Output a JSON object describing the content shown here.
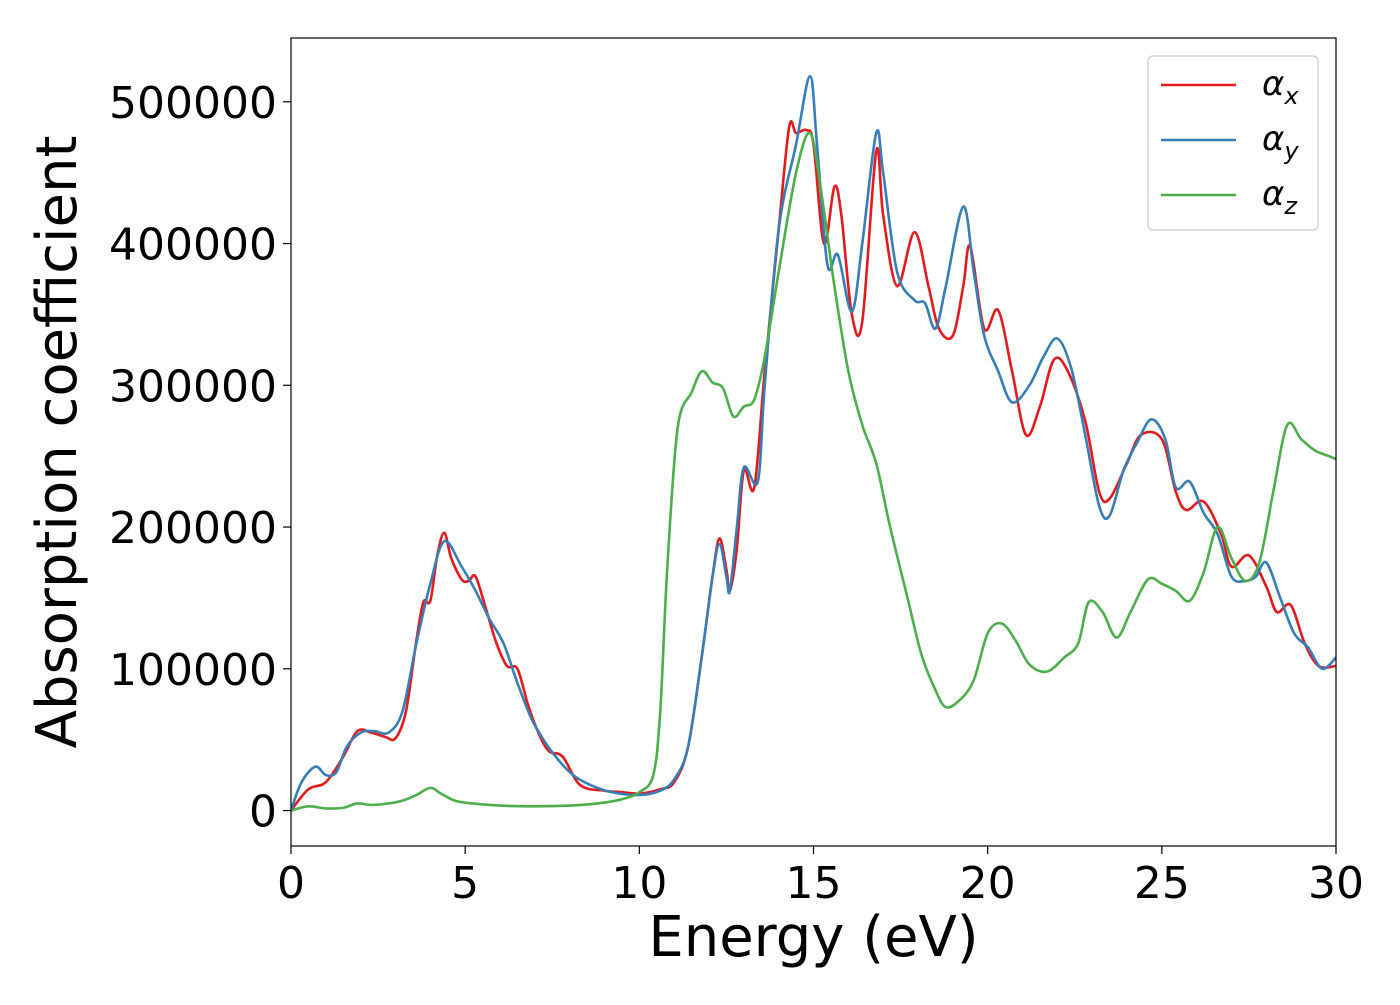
{
  "chart_data": {
    "type": "line",
    "xlabel": "Energy (eV)",
    "ylabel": "Absorption coefficient",
    "xlim": [
      0,
      30
    ],
    "ylim": [
      -25000,
      545000
    ],
    "xticks": [
      "0",
      "5",
      "10",
      "15",
      "20",
      "25",
      "30"
    ],
    "yticks": [
      "0",
      "100000",
      "200000",
      "300000",
      "400000",
      "500000"
    ],
    "grid": false,
    "legend_position": "top-right",
    "series": [
      {
        "name": "αx",
        "legend_base": "α",
        "legend_sub": "x",
        "color": "#e41a1c",
        "points": [
          [
            0,
            0
          ],
          [
            0.5,
            15000
          ],
          [
            1.0,
            20000
          ],
          [
            1.5,
            38000
          ],
          [
            1.9,
            56000
          ],
          [
            2.3,
            55000
          ],
          [
            2.7,
            52000
          ],
          [
            3.0,
            51000
          ],
          [
            3.3,
            70000
          ],
          [
            3.6,
            120000
          ],
          [
            3.8,
            147000
          ],
          [
            4.0,
            148000
          ],
          [
            4.2,
            180000
          ],
          [
            4.4,
            196000
          ],
          [
            4.6,
            178000
          ],
          [
            4.9,
            163000
          ],
          [
            5.1,
            162000
          ],
          [
            5.3,
            165000
          ],
          [
            5.6,
            142000
          ],
          [
            5.9,
            118000
          ],
          [
            6.2,
            102000
          ],
          [
            6.5,
            100000
          ],
          [
            6.8,
            75000
          ],
          [
            7.1,
            55000
          ],
          [
            7.4,
            42000
          ],
          [
            7.8,
            38000
          ],
          [
            8.3,
            18000
          ],
          [
            9.0,
            14000
          ],
          [
            9.5,
            13000
          ],
          [
            10.0,
            12000
          ],
          [
            10.6,
            15000
          ],
          [
            11.0,
            20000
          ],
          [
            11.4,
            45000
          ],
          [
            11.8,
            110000
          ],
          [
            12.1,
            165000
          ],
          [
            12.3,
            192000
          ],
          [
            12.5,
            170000
          ],
          [
            12.6,
            155000
          ],
          [
            12.8,
            185000
          ],
          [
            13.0,
            240000
          ],
          [
            13.3,
            228000
          ],
          [
            13.6,
            310000
          ],
          [
            14.0,
            410000
          ],
          [
            14.3,
            482000
          ],
          [
            14.5,
            478000
          ],
          [
            14.8,
            480000
          ],
          [
            15.0,
            470000
          ],
          [
            15.3,
            400000
          ],
          [
            15.6,
            440000
          ],
          [
            15.8,
            420000
          ],
          [
            16.1,
            350000
          ],
          [
            16.4,
            345000
          ],
          [
            16.8,
            465000
          ],
          [
            17.0,
            420000
          ],
          [
            17.4,
            370000
          ],
          [
            17.9,
            408000
          ],
          [
            18.3,
            370000
          ],
          [
            18.6,
            340000
          ],
          [
            19.0,
            335000
          ],
          [
            19.3,
            370000
          ],
          [
            19.5,
            398000
          ],
          [
            19.9,
            340000
          ],
          [
            20.3,
            353000
          ],
          [
            20.7,
            310000
          ],
          [
            21.1,
            265000
          ],
          [
            21.5,
            285000
          ],
          [
            21.9,
            318000
          ],
          [
            22.3,
            310000
          ],
          [
            22.8,
            275000
          ],
          [
            23.2,
            225000
          ],
          [
            23.5,
            220000
          ],
          [
            24.0,
            245000
          ],
          [
            24.4,
            265000
          ],
          [
            25.0,
            262000
          ],
          [
            25.4,
            225000
          ],
          [
            25.7,
            212000
          ],
          [
            26.2,
            218000
          ],
          [
            26.7,
            195000
          ],
          [
            27.0,
            172000
          ],
          [
            27.5,
            180000
          ],
          [
            28.0,
            158000
          ],
          [
            28.3,
            140000
          ],
          [
            28.7,
            145000
          ],
          [
            29.1,
            118000
          ],
          [
            29.5,
            102000
          ],
          [
            30.0,
            102000
          ]
        ]
      },
      {
        "name": "αy",
        "legend_base": "α",
        "legend_sub": "y",
        "color": "#377eb8",
        "points": [
          [
            0,
            0
          ],
          [
            0.3,
            20000
          ],
          [
            0.7,
            31000
          ],
          [
            1.0,
            25000
          ],
          [
            1.3,
            27000
          ],
          [
            1.6,
            45000
          ],
          [
            2.0,
            55000
          ],
          [
            2.4,
            56000
          ],
          [
            2.8,
            55000
          ],
          [
            3.2,
            70000
          ],
          [
            3.6,
            118000
          ],
          [
            4.0,
            160000
          ],
          [
            4.4,
            190000
          ],
          [
            4.9,
            172000
          ],
          [
            5.3,
            155000
          ],
          [
            5.7,
            135000
          ],
          [
            6.1,
            118000
          ],
          [
            6.5,
            90000
          ],
          [
            6.9,
            65000
          ],
          [
            7.3,
            48000
          ],
          [
            7.7,
            35000
          ],
          [
            8.1,
            25000
          ],
          [
            8.6,
            18000
          ],
          [
            9.2,
            13000
          ],
          [
            10.0,
            11000
          ],
          [
            10.6,
            14000
          ],
          [
            11.0,
            22000
          ],
          [
            11.4,
            45000
          ],
          [
            11.8,
            110000
          ],
          [
            12.1,
            165000
          ],
          [
            12.3,
            188000
          ],
          [
            12.5,
            165000
          ],
          [
            12.6,
            155000
          ],
          [
            12.8,
            200000
          ],
          [
            13.0,
            242000
          ],
          [
            13.4,
            232000
          ],
          [
            13.6,
            300000
          ],
          [
            14.0,
            410000
          ],
          [
            14.5,
            470000
          ],
          [
            14.9,
            518000
          ],
          [
            15.1,
            470000
          ],
          [
            15.4,
            385000
          ],
          [
            15.7,
            392000
          ],
          [
            16.1,
            352000
          ],
          [
            16.4,
            400000
          ],
          [
            16.8,
            478000
          ],
          [
            17.0,
            450000
          ],
          [
            17.4,
            380000
          ],
          [
            17.9,
            360000
          ],
          [
            18.2,
            358000
          ],
          [
            18.5,
            340000
          ],
          [
            18.8,
            370000
          ],
          [
            19.3,
            426000
          ],
          [
            19.6,
            380000
          ],
          [
            19.9,
            335000
          ],
          [
            20.3,
            310000
          ],
          [
            20.7,
            288000
          ],
          [
            21.2,
            300000
          ],
          [
            21.6,
            320000
          ],
          [
            22.0,
            333000
          ],
          [
            22.4,
            312000
          ],
          [
            22.8,
            265000
          ],
          [
            23.2,
            215000
          ],
          [
            23.5,
            208000
          ],
          [
            23.9,
            240000
          ],
          [
            24.3,
            260000
          ],
          [
            24.7,
            276000
          ],
          [
            25.1,
            262000
          ],
          [
            25.4,
            228000
          ],
          [
            25.8,
            232000
          ],
          [
            26.2,
            210000
          ],
          [
            26.6,
            195000
          ],
          [
            27.0,
            165000
          ],
          [
            27.4,
            162000
          ],
          [
            27.7,
            165000
          ],
          [
            28.0,
            175000
          ],
          [
            28.4,
            150000
          ],
          [
            28.8,
            125000
          ],
          [
            29.2,
            115000
          ],
          [
            29.6,
            100000
          ],
          [
            30.0,
            108000
          ]
        ]
      },
      {
        "name": "αz",
        "legend_base": "α",
        "legend_sub": "z",
        "color": "#4daf4a",
        "points": [
          [
            0,
            0
          ],
          [
            0.5,
            3000
          ],
          [
            1.0,
            1500
          ],
          [
            1.5,
            2000
          ],
          [
            1.9,
            5000
          ],
          [
            2.3,
            4000
          ],
          [
            2.8,
            5000
          ],
          [
            3.2,
            7000
          ],
          [
            3.6,
            11000
          ],
          [
            4.0,
            16000
          ],
          [
            4.3,
            12000
          ],
          [
            4.7,
            7000
          ],
          [
            5.2,
            5000
          ],
          [
            6.0,
            3500
          ],
          [
            7.0,
            3000
          ],
          [
            8.0,
            3500
          ],
          [
            8.8,
            5000
          ],
          [
            9.5,
            8000
          ],
          [
            10.0,
            13000
          ],
          [
            10.4,
            25000
          ],
          [
            10.6,
            70000
          ],
          [
            10.8,
            170000
          ],
          [
            11.1,
            270000
          ],
          [
            11.5,
            295000
          ],
          [
            11.8,
            310000
          ],
          [
            12.1,
            302000
          ],
          [
            12.4,
            298000
          ],
          [
            12.7,
            278000
          ],
          [
            13.0,
            285000
          ],
          [
            13.3,
            290000
          ],
          [
            13.6,
            320000
          ],
          [
            14.0,
            380000
          ],
          [
            14.5,
            450000
          ],
          [
            14.9,
            478000
          ],
          [
            15.2,
            440000
          ],
          [
            15.6,
            370000
          ],
          [
            16.0,
            310000
          ],
          [
            16.4,
            272000
          ],
          [
            16.8,
            245000
          ],
          [
            17.2,
            200000
          ],
          [
            17.7,
            150000
          ],
          [
            18.1,
            110000
          ],
          [
            18.5,
            85000
          ],
          [
            18.8,
            73000
          ],
          [
            19.2,
            78000
          ],
          [
            19.6,
            92000
          ],
          [
            20.0,
            125000
          ],
          [
            20.4,
            132000
          ],
          [
            20.8,
            120000
          ],
          [
            21.2,
            103000
          ],
          [
            21.7,
            98000
          ],
          [
            22.2,
            108000
          ],
          [
            22.6,
            118000
          ],
          [
            22.9,
            147000
          ],
          [
            23.3,
            140000
          ],
          [
            23.7,
            122000
          ],
          [
            24.1,
            140000
          ],
          [
            24.6,
            163000
          ],
          [
            25.0,
            160000
          ],
          [
            25.4,
            155000
          ],
          [
            25.8,
            148000
          ],
          [
            26.2,
            168000
          ],
          [
            26.6,
            200000
          ],
          [
            27.0,
            178000
          ],
          [
            27.4,
            162000
          ],
          [
            27.8,
            175000
          ],
          [
            28.2,
            225000
          ],
          [
            28.6,
            272000
          ],
          [
            29.0,
            262000
          ],
          [
            29.4,
            254000
          ],
          [
            29.8,
            250000
          ],
          [
            30.0,
            248000
          ]
        ]
      }
    ]
  }
}
